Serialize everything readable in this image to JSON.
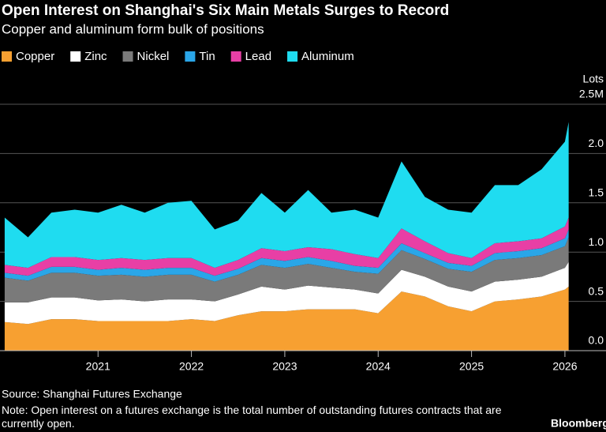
{
  "chart_data": {
    "type": "stacked-area",
    "title": "Open Interest on Shanghai's Six Main Metals Surges to Record",
    "subtitle": "Copper and aluminum form bulk of positions",
    "y_axis_label": "Lots",
    "source": "Source: Shanghai Futures Exchange",
    "note": "Note: Open interest on a futures exchange is the total number of outstanding futures contracts that are currently open.",
    "brand": "Bloomberg",
    "x": [
      2020.0,
      2020.25,
      2020.5,
      2020.75,
      2021.0,
      2021.25,
      2021.5,
      2021.75,
      2022.0,
      2022.25,
      2022.5,
      2022.75,
      2023.0,
      2023.25,
      2023.5,
      2023.75,
      2024.0,
      2024.25,
      2024.5,
      2024.75,
      2025.0,
      2025.25,
      2025.5,
      2025.75,
      2026.0,
      2026.04
    ],
    "series": [
      {
        "name": "Copper",
        "color": "#f7a031",
        "values": [
          0.29,
          0.27,
          0.32,
          0.32,
          0.3,
          0.3,
          0.3,
          0.3,
          0.32,
          0.3,
          0.36,
          0.4,
          0.4,
          0.42,
          0.42,
          0.42,
          0.38,
          0.6,
          0.55,
          0.45,
          0.4,
          0.5,
          0.52,
          0.55,
          0.62,
          0.65
        ]
      },
      {
        "name": "Zinc",
        "color": "#ffffff",
        "values": [
          0.2,
          0.22,
          0.22,
          0.22,
          0.21,
          0.22,
          0.2,
          0.22,
          0.2,
          0.2,
          0.21,
          0.25,
          0.22,
          0.24,
          0.22,
          0.2,
          0.2,
          0.22,
          0.2,
          0.2,
          0.2,
          0.2,
          0.2,
          0.2,
          0.22,
          0.25
        ]
      },
      {
        "name": "Nickel",
        "color": "#7a7a7a",
        "values": [
          0.25,
          0.22,
          0.25,
          0.25,
          0.25,
          0.25,
          0.25,
          0.25,
          0.25,
          0.2,
          0.2,
          0.22,
          0.22,
          0.22,
          0.2,
          0.18,
          0.2,
          0.2,
          0.18,
          0.18,
          0.2,
          0.22,
          0.22,
          0.22,
          0.22,
          0.25
        ]
      },
      {
        "name": "Tin",
        "color": "#2aa6e8",
        "values": [
          0.05,
          0.05,
          0.06,
          0.06,
          0.06,
          0.07,
          0.07,
          0.07,
          0.07,
          0.06,
          0.06,
          0.07,
          0.07,
          0.07,
          0.07,
          0.06,
          0.06,
          0.07,
          0.06,
          0.06,
          0.06,
          0.07,
          0.07,
          0.07,
          0.08,
          0.08
        ]
      },
      {
        "name": "Lead",
        "color": "#e83fa5",
        "values": [
          0.08,
          0.08,
          0.1,
          0.1,
          0.1,
          0.1,
          0.1,
          0.1,
          0.1,
          0.08,
          0.09,
          0.1,
          0.1,
          0.1,
          0.12,
          0.12,
          0.1,
          0.15,
          0.12,
          0.1,
          0.08,
          0.1,
          0.1,
          0.1,
          0.12,
          0.12
        ]
      },
      {
        "name": "Aluminum",
        "color": "#1fdcf0",
        "values": [
          0.48,
          0.31,
          0.45,
          0.48,
          0.48,
          0.54,
          0.48,
          0.56,
          0.58,
          0.39,
          0.4,
          0.56,
          0.39,
          0.58,
          0.37,
          0.45,
          0.41,
          0.68,
          0.45,
          0.44,
          0.46,
          0.59,
          0.57,
          0.7,
          0.86,
          0.97
        ]
      }
    ],
    "xlim": [
      2019.95,
      2026.44
    ],
    "xticks": [
      2021,
      2022,
      2023,
      2024,
      2025,
      2026
    ],
    "ylim": [
      0,
      2.5
    ],
    "yticks": [
      {
        "value": 0,
        "label": "0.0"
      },
      0.5,
      {
        "value": 1,
        "label": "1.0"
      },
      1.5,
      {
        "value": 2,
        "label": "2.0"
      },
      {
        "value": 2.5,
        "label": "2.5M"
      }
    ],
    "grid": true
  }
}
